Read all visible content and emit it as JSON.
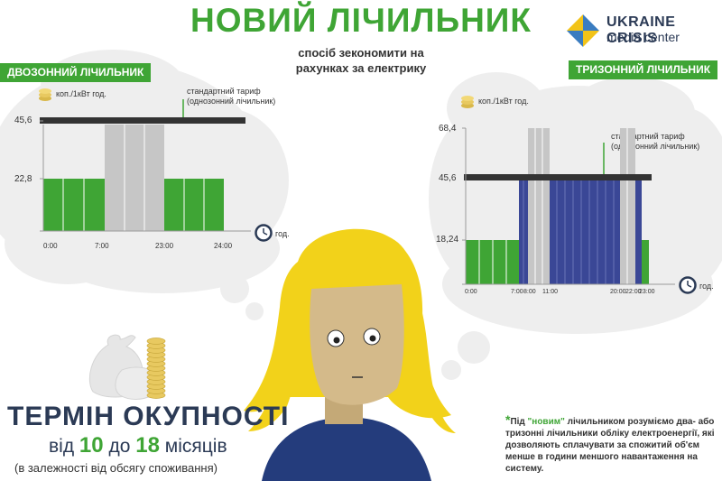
{
  "header": {
    "title": "НОВИЙ ЛІЧИЛЬНИК",
    "subtitle_line1": "спосіб зекономити на",
    "subtitle_line2": "рахунках за електрику"
  },
  "logo": {
    "line1": "UKRAINE CRISIS",
    "line2": "media center",
    "icon": "ukraine-crisis-logo-icon"
  },
  "colors": {
    "green": "#3fa535",
    "gray": "#c6c6c6",
    "blue": "#3a4796",
    "navy": "#2b3a55",
    "bar": "#333333",
    "hair_yellow": "#f2d21a",
    "skin": "#d4ba8a",
    "shirt": "#243c7c"
  },
  "two_zone": {
    "banner": "ДВОЗОННИЙ ЛІЧИЛЬНИК",
    "unit_label": "коп./1кВт год.",
    "y_ticks": [
      "45,6",
      "22,8"
    ],
    "x_ticks": [
      "0:00",
      "7:00",
      "23:00",
      "24:00"
    ],
    "x_axis_label": "год.",
    "standard_tariff_line1": "стандартний тариф",
    "standard_tariff_line2": "(однозонний лічильник)"
  },
  "three_zone": {
    "banner": "ТРИЗОННИЙ ЛІЧИЛЬНИК",
    "unit_label": "коп./1кВт год.",
    "y_ticks": [
      "68,4",
      "45,6",
      "18,24"
    ],
    "x_ticks": [
      "0:00",
      "7:00",
      "8:00",
      "11:00",
      "20:00",
      "22:00",
      "23:00"
    ],
    "x_axis_label": "год.",
    "standard_tariff_line1": "стандартний тариф",
    "standard_tariff_line2": "(однозонний лічильник)"
  },
  "payback": {
    "title": "ТЕРМІН ОКУПНОСТІ",
    "from_word": "від",
    "from_value": "10",
    "to_word": "до",
    "to_value": "18",
    "unit_word": "місяців",
    "note": "(в залежності від обсягу споживання)"
  },
  "footnote": {
    "star": "*",
    "part1": "Під ",
    "highlight": "\"новим\"",
    "part2": " лічильником розуміємо два- або тризонні лічильники обліку електроенергії, які дозволяють сплачувати за спожитий об'єм менше в години меншого навантаження на систему."
  }
}
